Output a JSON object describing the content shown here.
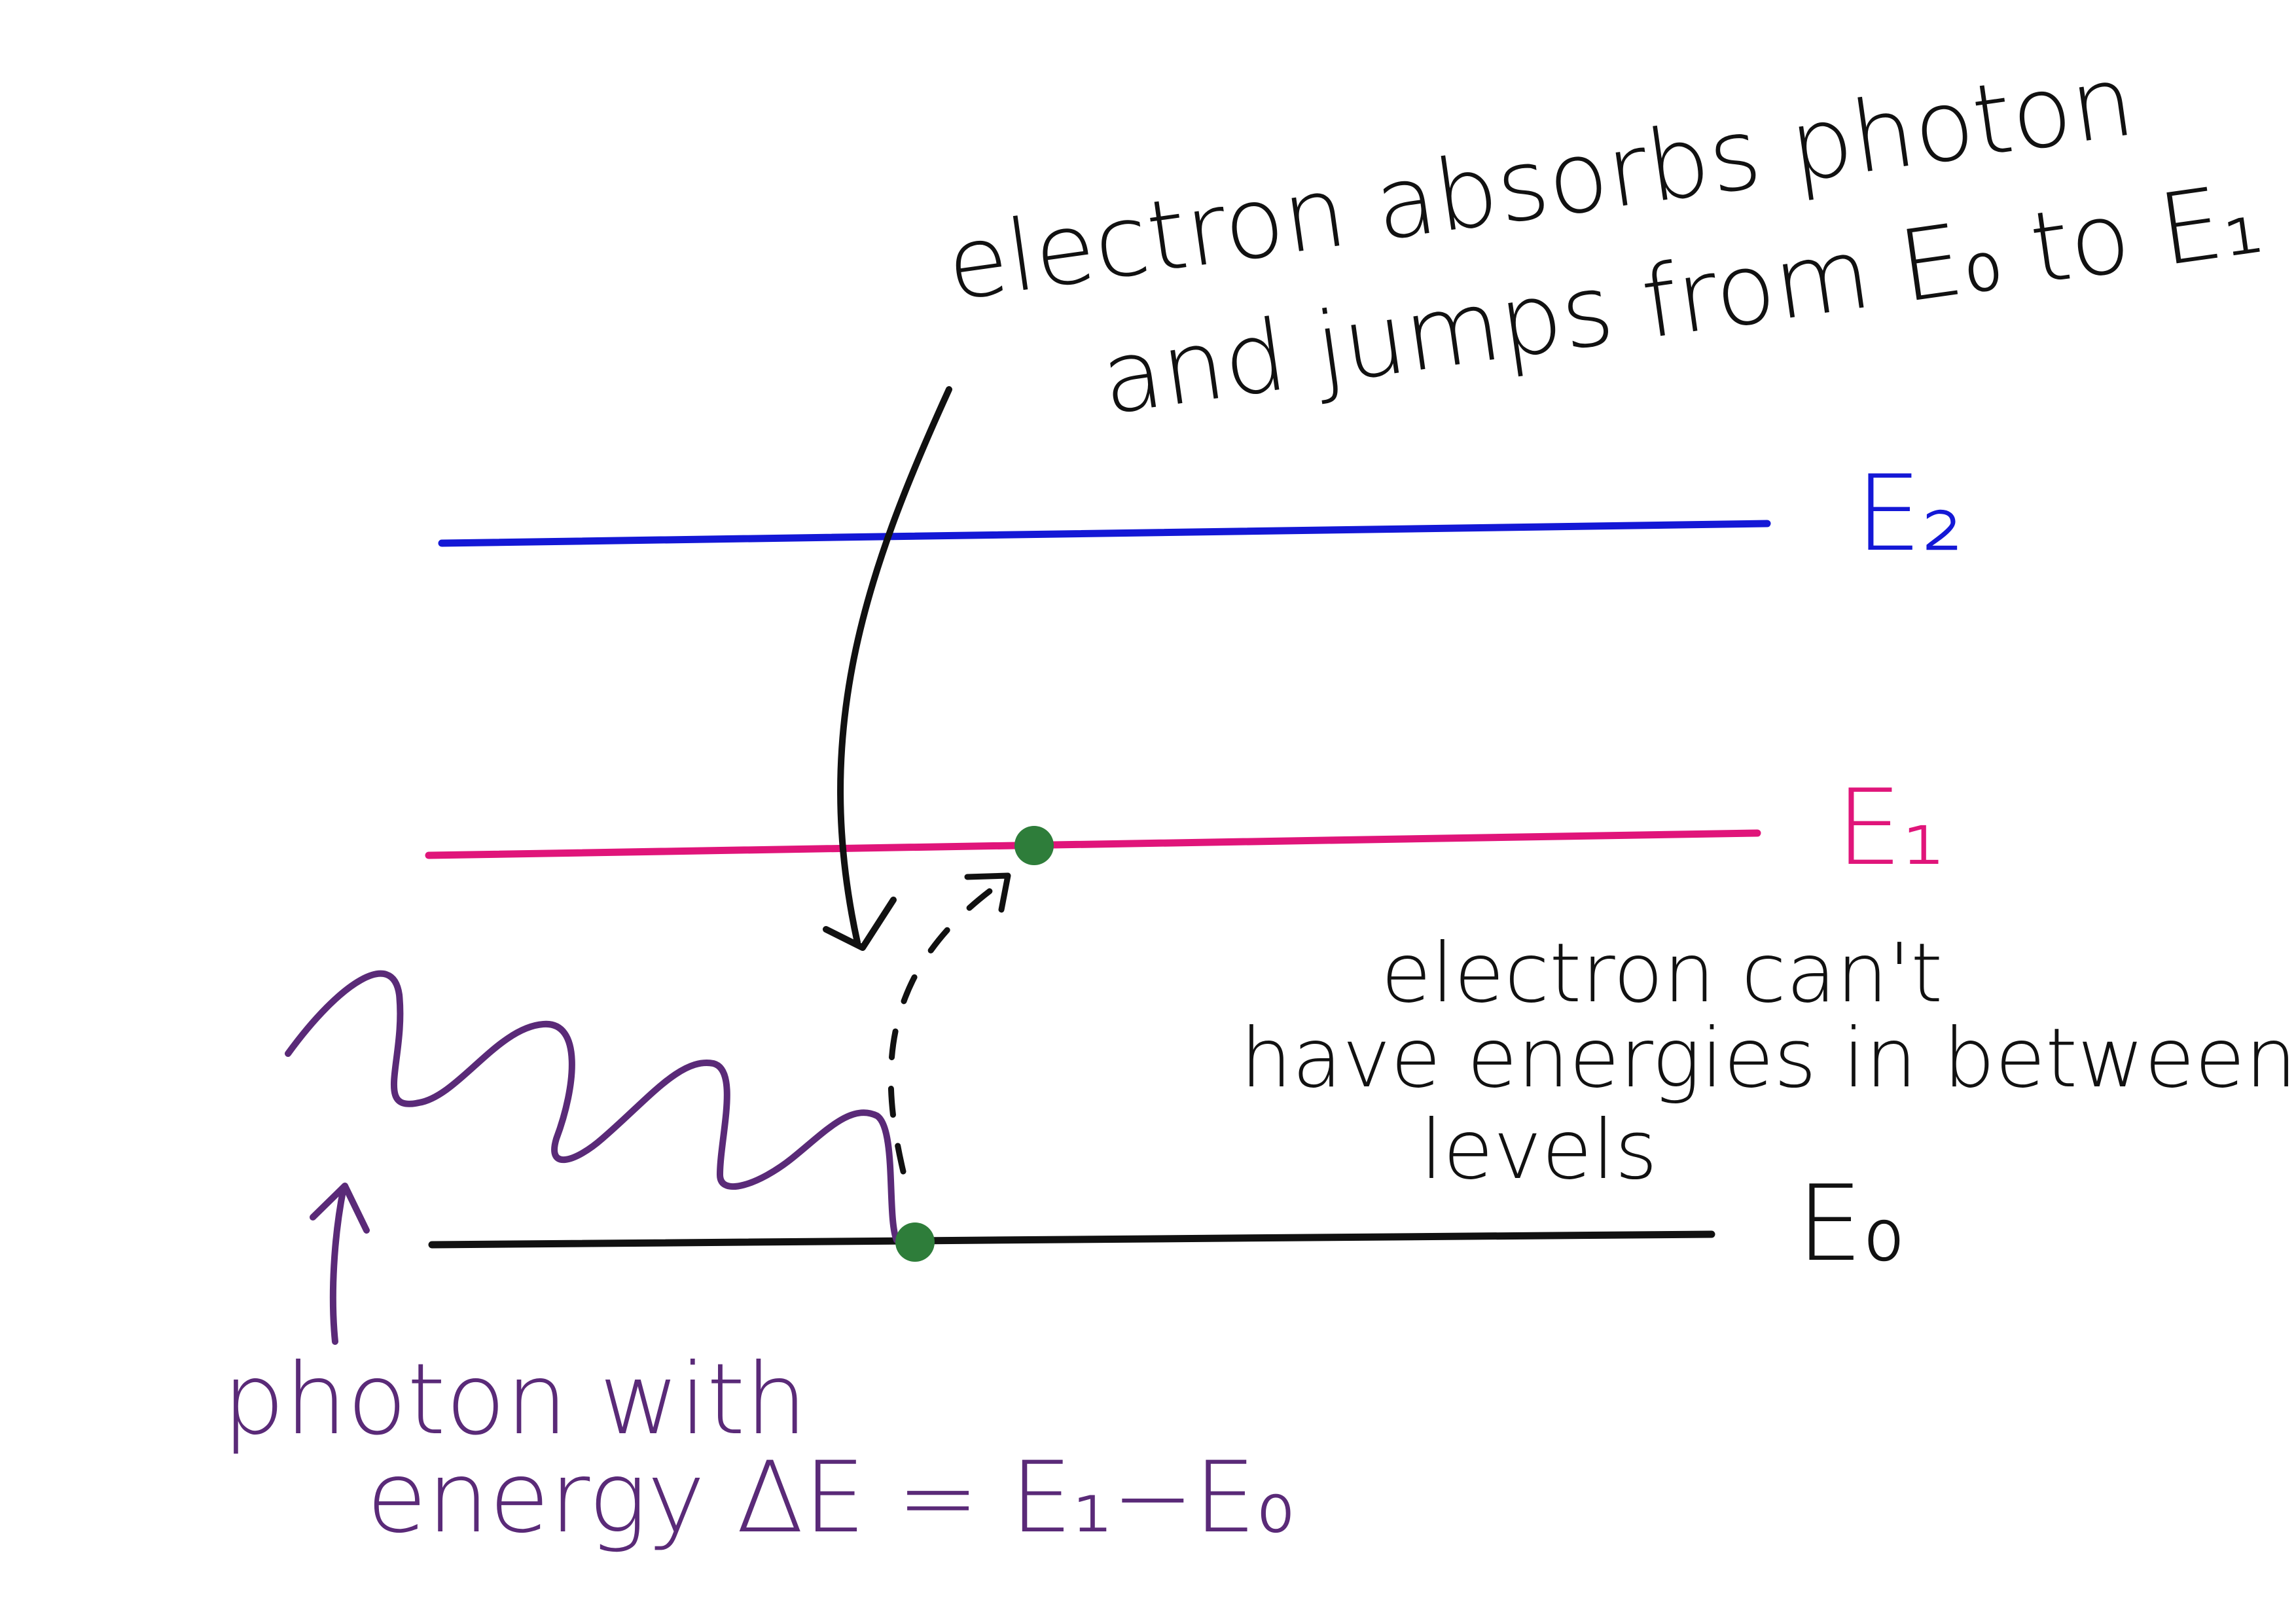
{
  "levels": {
    "e2": {
      "label": "E₂",
      "color": "#1418d6"
    },
    "e1": {
      "label": "E₁",
      "color": "#e0157a"
    },
    "e0": {
      "label": "E₀",
      "color": "#111111"
    }
  },
  "annotations": {
    "absorb_line1": "electron  absorbs photon",
    "absorb_line2": "and jumps from E₀ to E₁",
    "between_line1": "electron  can't",
    "between_line2": "have energies in  between",
    "between_line3": "levels",
    "photon_line1": "photon with",
    "photon_line2": "energy ΔE = E₁−E₀"
  },
  "colors": {
    "ink": "#111111",
    "photon": "#5a2a78",
    "electron": "#2e7d3a"
  }
}
